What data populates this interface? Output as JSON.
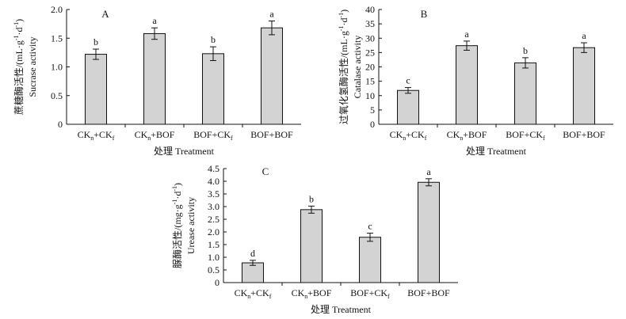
{
  "chart_data": [
    {
      "type": "bar",
      "panel": "A",
      "categories": [
        {
          "main": "CK",
          "sub1": "n",
          "mid": "+CK",
          "sub2": "f",
          "tail": ""
        },
        {
          "main": "CK",
          "sub1": "n",
          "mid": "+BOF",
          "sub2": "",
          "tail": ""
        },
        {
          "main": "BOF+CK",
          "sub1": "f",
          "mid": "",
          "sub2": "",
          "tail": ""
        },
        {
          "main": "BOF+BOF",
          "sub1": "",
          "mid": "",
          "sub2": "",
          "tail": ""
        }
      ],
      "values": [
        1.22,
        1.58,
        1.23,
        1.68
      ],
      "errors": [
        0.09,
        0.1,
        0.12,
        0.12
      ],
      "letters": [
        "b",
        "a",
        "b",
        "a"
      ],
      "xlabel": "处理 Treatment",
      "ylabel_cn": "蔗糖酶活性/(mL·g",
      "ylabel_cn_sup1": "-1",
      "ylabel_cn_mid": "·d",
      "ylabel_cn_sup2": "-1",
      "ylabel_cn_tail": ")",
      "ylabel_en": "Sucrase activity",
      "ylim": [
        0,
        2.0
      ],
      "yticks": [
        "0",
        "0.5",
        "1.0",
        "1.5",
        "2.0"
      ],
      "ytick_values": [
        0,
        0.5,
        1.0,
        1.5,
        2.0
      ],
      "bar_color": "#d3d3d3"
    },
    {
      "type": "bar",
      "panel": "B",
      "categories": [
        {
          "main": "CK",
          "sub1": "n",
          "mid": "+CK",
          "sub2": "f",
          "tail": ""
        },
        {
          "main": "CK",
          "sub1": "n",
          "mid": "+BOF",
          "sub2": "",
          "tail": ""
        },
        {
          "main": "BOF+CK",
          "sub1": "f",
          "mid": "",
          "sub2": "",
          "tail": ""
        },
        {
          "main": "BOF+BOF",
          "sub1": "",
          "mid": "",
          "sub2": "",
          "tail": ""
        }
      ],
      "values": [
        11.8,
        27.4,
        21.4,
        26.7
      ],
      "errors": [
        1.0,
        1.6,
        1.8,
        1.7
      ],
      "letters": [
        "c",
        "a",
        "b",
        "a"
      ],
      "xlabel": "处理 Treatment",
      "ylabel_cn": "过氧化氢酶活性/(mL·g",
      "ylabel_cn_sup1": "-1",
      "ylabel_cn_mid": "·d",
      "ylabel_cn_sup2": "-1",
      "ylabel_cn_tail": ")",
      "ylabel_en": "Catalase activity",
      "ylim": [
        0,
        40
      ],
      "yticks": [
        "0",
        "5",
        "10",
        "15",
        "20",
        "25",
        "30",
        "35",
        "40"
      ],
      "ytick_values": [
        0,
        5,
        10,
        15,
        20,
        25,
        30,
        35,
        40
      ],
      "bar_color": "#d3d3d3"
    },
    {
      "type": "bar",
      "panel": "C",
      "categories": [
        {
          "main": "CK",
          "sub1": "n",
          "mid": "+CK",
          "sub2": "f",
          "tail": ""
        },
        {
          "main": "CK",
          "sub1": "n",
          "mid": "+BOF",
          "sub2": "",
          "tail": ""
        },
        {
          "main": "BOF+CK",
          "sub1": "f",
          "mid": "",
          "sub2": "",
          "tail": ""
        },
        {
          "main": "BOF+BOF",
          "sub1": "",
          "mid": "",
          "sub2": "",
          "tail": ""
        }
      ],
      "values": [
        0.78,
        2.88,
        1.79,
        3.96
      ],
      "errors": [
        0.1,
        0.14,
        0.16,
        0.14
      ],
      "letters": [
        "d",
        "b",
        "c",
        "a"
      ],
      "xlabel": "处理 Treatment",
      "ylabel_cn": "脲酶活性/(mg·g",
      "ylabel_cn_sup1": "-1",
      "ylabel_cn_mid": "·d",
      "ylabel_cn_sup2": "-1",
      "ylabel_cn_tail": ")",
      "ylabel_en": "Urease activity",
      "ylim": [
        0,
        4.5
      ],
      "yticks": [
        "0",
        "0.5",
        "1.0",
        "1.5",
        "2.0",
        "2.5",
        "3.0",
        "3.5",
        "4.0",
        "4.5"
      ],
      "ytick_values": [
        0,
        0.5,
        1.0,
        1.5,
        2.0,
        2.5,
        3.0,
        3.5,
        4.0,
        4.5
      ],
      "bar_color": "#d3d3d3"
    }
  ]
}
